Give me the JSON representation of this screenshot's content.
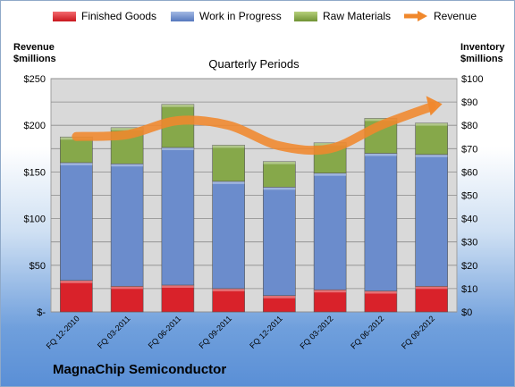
{
  "chart_data": {
    "type": "bar",
    "subtitle": "Quarterly Periods",
    "company": "MagnaChip Semiconductor",
    "left_axis_label": [
      "Revenue",
      "$millions"
    ],
    "right_axis_label": [
      "Inventory",
      "$millions"
    ],
    "categories": [
      "FQ 12-2010",
      "FQ 03-2011",
      "FQ 06-2011",
      "FQ 09-2011",
      "FQ 12-2011",
      "FQ 03-2012",
      "FQ 06-2012",
      "FQ 09-2012"
    ],
    "stacked": true,
    "axis": "right",
    "ylim_right": [
      0,
      100
    ],
    "ylim_left": [
      0,
      250
    ],
    "left_ticks": [
      "$-",
      "$50",
      "$100",
      "$150",
      "$200",
      "$250"
    ],
    "right_ticks": [
      "$0",
      "$10",
      "$20",
      "$30",
      "$40",
      "$50",
      "$60",
      "$70",
      "$80",
      "$90",
      "$100"
    ],
    "series": [
      {
        "name": "Finished Goods",
        "color": "#d9222a",
        "values": [
          13.5,
          11,
          11.5,
          10,
          7,
          9.5,
          9,
          11
        ]
      },
      {
        "name": "Work in Progress",
        "color": "#6b8ccc",
        "values": [
          50.5,
          52.5,
          59,
          46,
          46.5,
          50,
          59,
          56.5
        ]
      },
      {
        "name": "Raw Materials",
        "color": "#86a84a",
        "values": [
          11,
          15.5,
          18.5,
          15.5,
          11,
          13,
          15,
          13.5
        ]
      }
    ],
    "line": {
      "name": "Revenue",
      "color": "#f0882c",
      "axis": "left",
      "values": [
        188,
        190,
        205,
        200,
        178,
        175,
        200,
        220
      ]
    },
    "grid": true,
    "legend_position": "top"
  }
}
